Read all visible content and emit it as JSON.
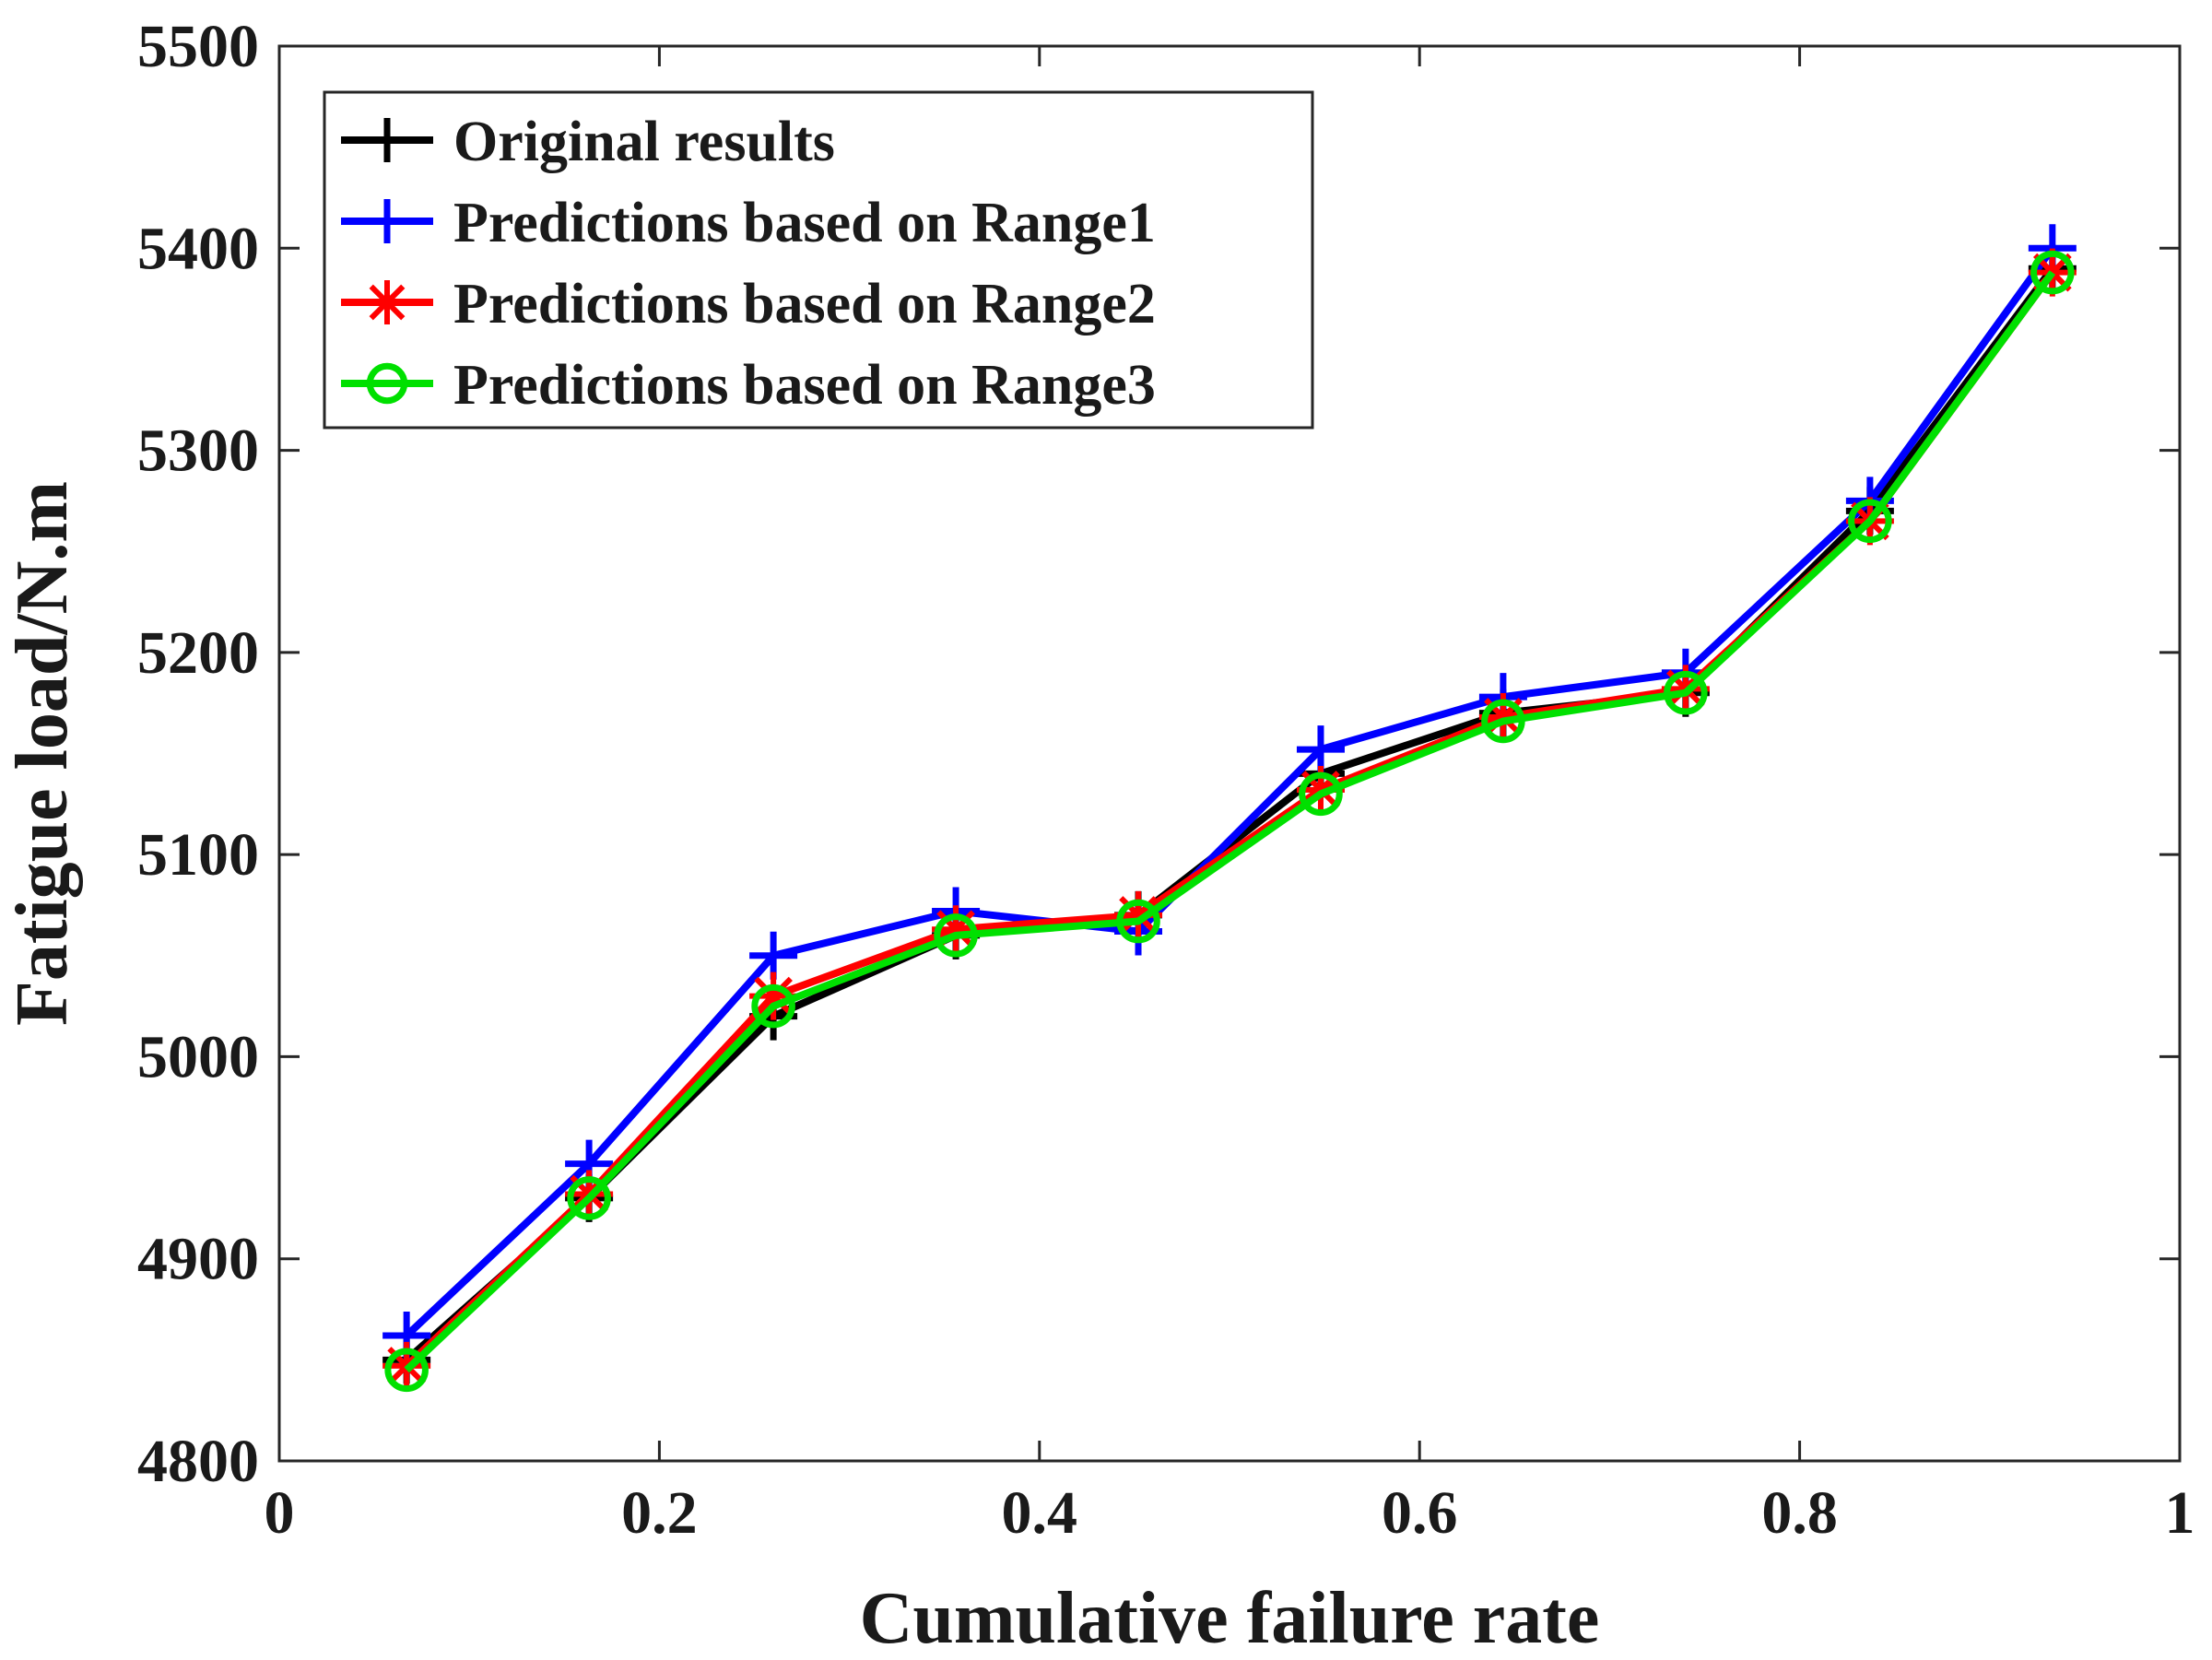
{
  "chart_data": {
    "type": "line",
    "title": "",
    "xlabel": "Cumulative failure rate",
    "ylabel": "Fatigue load/N.m",
    "xlim": [
      0,
      1
    ],
    "ylim": [
      4800,
      5500
    ],
    "xticks": [
      0,
      0.2,
      0.4,
      0.6,
      0.8,
      1
    ],
    "xtick_labels": [
      "0",
      "0.2",
      "0.4",
      "0.6",
      "0.8",
      "1"
    ],
    "yticks": [
      4800,
      4900,
      5000,
      5100,
      5200,
      5300,
      5400,
      5500
    ],
    "ytick_labels": [
      "4800",
      "4900",
      "5000",
      "5100",
      "5200",
      "5300",
      "5400",
      "5500"
    ],
    "grid": false,
    "legend_position": "top-left",
    "x": [
      0.067,
      0.163,
      0.26,
      0.356,
      0.452,
      0.548,
      0.644,
      0.74,
      0.837,
      0.933
    ],
    "series": [
      {
        "name": "Original results",
        "color": "#000000",
        "marker": "plus",
        "values": [
          4850,
          4930,
          5020,
          5060,
          5070,
          5140,
          5170,
          5180,
          5270,
          5390
        ]
      },
      {
        "name": "Predictions based on Range1",
        "color": "#0000ff",
        "marker": "plus",
        "values": [
          4862,
          4947,
          5050,
          5072,
          5062,
          5152,
          5178,
          5190,
          5275,
          5400
        ]
      },
      {
        "name": "Predictions based on Range2",
        "color": "#ff0000",
        "marker": "asterisk",
        "values": [
          4847,
          4932,
          5030,
          5063,
          5070,
          5132,
          5168,
          5182,
          5265,
          5388
        ]
      },
      {
        "name": "Predictions based on Range3",
        "color": "#00e000",
        "marker": "circle",
        "values": [
          4845,
          4930,
          5025,
          5060,
          5067,
          5130,
          5166,
          5180,
          5265,
          5388
        ]
      }
    ]
  }
}
